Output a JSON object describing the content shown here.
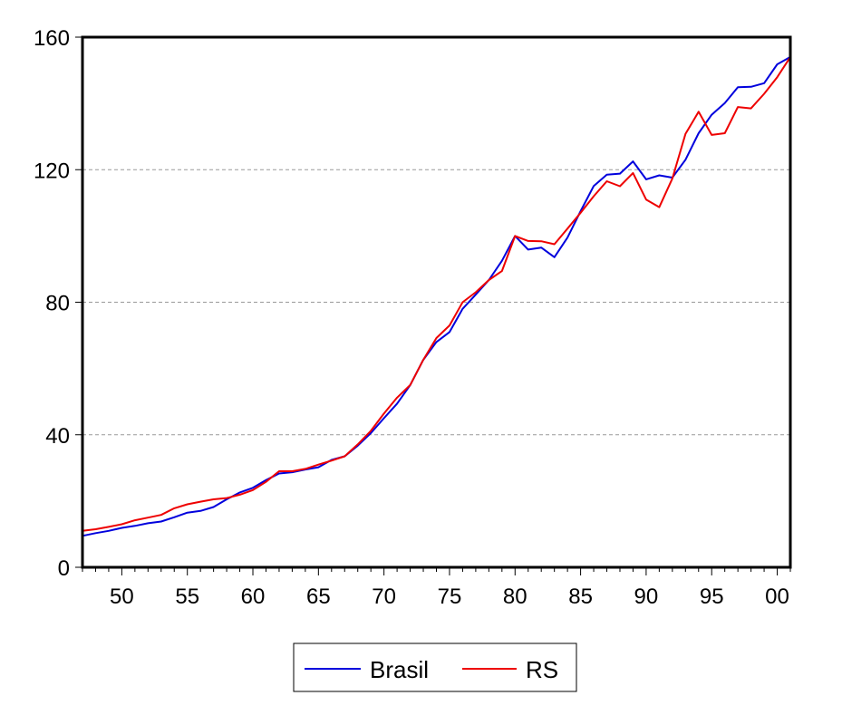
{
  "chart_data": {
    "type": "line",
    "title": "",
    "xlabel": "",
    "ylabel": "",
    "xlim": [
      1947,
      2001
    ],
    "ylim": [
      0,
      160
    ],
    "x_ticks": [
      1950,
      1955,
      1960,
      1965,
      1970,
      1975,
      1980,
      1985,
      1990,
      1995,
      2000
    ],
    "x_tick_labels": [
      "50",
      "55",
      "60",
      "65",
      "70",
      "75",
      "80",
      "85",
      "90",
      "95",
      "00"
    ],
    "y_ticks": [
      0,
      40,
      80,
      120,
      160
    ],
    "y_tick_labels": [
      "0",
      "40",
      "80",
      "120",
      "160"
    ],
    "grid": "horizontal dashed",
    "legend_position": "bottom-center",
    "x": [
      1947,
      1948,
      1949,
      1950,
      1951,
      1952,
      1953,
      1954,
      1955,
      1956,
      1957,
      1958,
      1959,
      1960,
      1961,
      1962,
      1963,
      1964,
      1965,
      1966,
      1967,
      1968,
      1969,
      1970,
      1971,
      1972,
      1973,
      1974,
      1975,
      1976,
      1977,
      1978,
      1979,
      1980,
      1981,
      1982,
      1983,
      1984,
      1985,
      1986,
      1987,
      1988,
      1989,
      1990,
      1991,
      1992,
      1993,
      1994,
      1995,
      1996,
      1997,
      1998,
      1999,
      2000,
      2001
    ],
    "series": [
      {
        "name": "Brasil",
        "color": "#0000dd",
        "values": [
          9.5,
          10.3,
          11.0,
          11.9,
          12.5,
          13.3,
          13.8,
          15.1,
          16.5,
          17.0,
          18.2,
          20.5,
          22.6,
          24.0,
          26.3,
          28.3,
          28.7,
          29.5,
          30.2,
          32.4,
          33.5,
          36.7,
          40.5,
          45.0,
          49.4,
          55.0,
          62.6,
          68.0,
          71.0,
          78.0,
          82.3,
          86.7,
          92.5,
          100.0,
          95.9,
          96.5,
          93.6,
          99.5,
          107.5,
          115.1,
          118.5,
          118.8,
          122.5,
          117.1,
          118.3,
          117.6,
          123.0,
          131.0,
          136.6,
          140.1,
          144.9,
          145.0,
          146.1,
          151.8,
          154.0
        ]
      },
      {
        "name": "RS",
        "color": "#ee0000",
        "values": [
          11.0,
          11.5,
          12.2,
          13.0,
          14.2,
          15.0,
          15.8,
          17.8,
          19.0,
          19.8,
          20.5,
          20.9,
          21.9,
          23.3,
          25.8,
          29.0,
          29.0,
          29.7,
          31.0,
          32.2,
          33.5,
          37.1,
          41.2,
          46.4,
          51.2,
          55.0,
          62.6,
          69.2,
          73.0,
          80.0,
          83.0,
          86.7,
          89.4,
          100.0,
          98.5,
          98.4,
          97.5,
          102.2,
          107.0,
          112.0,
          116.5,
          115.0,
          119.0,
          111.0,
          108.7,
          117.3,
          130.8,
          137.5,
          130.5,
          131.0,
          138.9,
          138.5,
          142.9,
          147.9,
          154.0
        ]
      }
    ]
  }
}
